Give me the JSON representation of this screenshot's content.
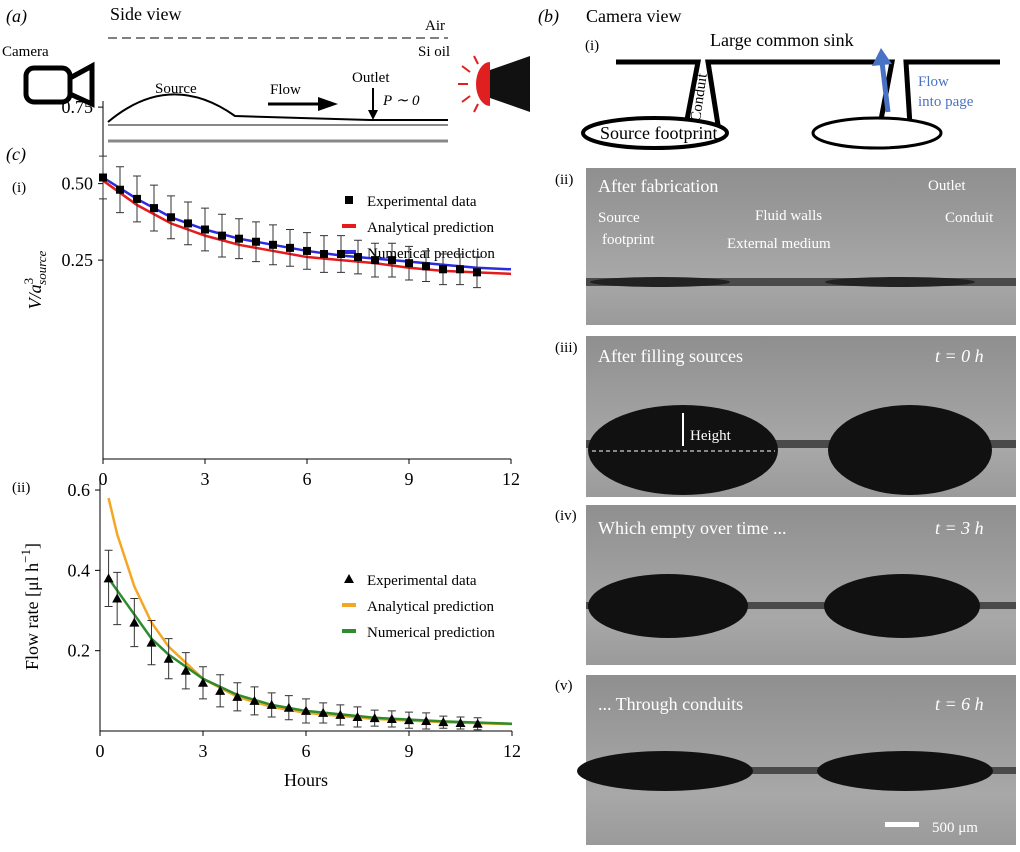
{
  "panel_a": {
    "label": "(a)",
    "title": "Side view",
    "air": "Air",
    "oil": "Si oil",
    "camera": "Camera",
    "source": "Source",
    "flow": "Flow",
    "outlet": "Outlet",
    "pressure": "P ∼ 0"
  },
  "panel_b": {
    "label": "(b)",
    "title": "Camera view",
    "schematic": {
      "label": "(i)",
      "sink": "Large common sink",
      "conduit": "Conduit",
      "footprint": "Source footprint",
      "flow": [
        "Flow",
        "into page"
      ]
    },
    "photos": [
      {
        "label": "(ii)",
        "caption": "After fabrication",
        "annotations": [
          "Source",
          "footprint",
          "Fluid walls",
          "Outlet",
          "Conduit",
          "External medium"
        ]
      },
      {
        "label": "(iii)",
        "caption": "After filling sources",
        "time": "t = 0 h",
        "annotations": [
          "Height"
        ]
      },
      {
        "label": "(iv)",
        "caption": "Which empty over time ...",
        "time": "t = 3 h"
      },
      {
        "label": "(v)",
        "caption": "... Through conduits",
        "time": "t = 6 h",
        "scale_bar": "500 μm"
      }
    ]
  },
  "panel_c": {
    "label": "(c)"
  },
  "chart_data": [
    {
      "type": "scatter",
      "panel_label": "(i)",
      "ylabel": {
        "text": "V/a",
        "sup": "3",
        "sub": "source"
      },
      "xlim": [
        0,
        12
      ],
      "xticks": [
        0,
        3,
        6,
        9,
        12
      ],
      "ylim": [
        -0.4,
        0.77
      ],
      "yticks": [
        0.25,
        {
          "value": 0.5,
          "label": "0.50"
        },
        0.75
      ],
      "series": [
        {
          "name": "Experimental data",
          "color": "#000000",
          "marker": "square",
          "x": [
            0,
            0.5,
            1,
            1.5,
            2,
            2.5,
            3,
            3.5,
            4,
            4.5,
            5,
            5.5,
            6,
            6.5,
            7,
            7.5,
            8,
            8.5,
            9,
            9.5,
            10,
            10.5,
            11
          ],
          "values": [
            0.52,
            0.48,
            0.45,
            0.42,
            0.39,
            0.37,
            0.35,
            0.33,
            0.32,
            0.31,
            0.3,
            0.29,
            0.28,
            0.27,
            0.27,
            0.26,
            0.25,
            0.25,
            0.24,
            0.23,
            0.22,
            0.22,
            0.21
          ],
          "errors": [
            0.07,
            0.075,
            0.075,
            0.075,
            0.07,
            0.07,
            0.07,
            0.07,
            0.065,
            0.065,
            0.065,
            0.06,
            0.06,
            0.06,
            0.06,
            0.055,
            0.055,
            0.055,
            0.055,
            0.05,
            0.05,
            0.05,
            0.05
          ]
        },
        {
          "name": "Analytical prediction",
          "color": "#e41a1c",
          "marker": "line",
          "x": [
            0,
            1,
            2,
            3,
            4,
            5,
            6,
            7,
            8,
            9,
            10,
            11,
            12
          ],
          "values": [
            0.51,
            0.43,
            0.37,
            0.33,
            0.3,
            0.28,
            0.26,
            0.25,
            0.24,
            0.225,
            0.215,
            0.21,
            0.205
          ]
        },
        {
          "name": "Numerical prediction",
          "color": "#2b2bdf",
          "marker": "line",
          "x": [
            0,
            1,
            2,
            3,
            4,
            5,
            6,
            7,
            8,
            9,
            10,
            11,
            12
          ],
          "values": [
            0.52,
            0.45,
            0.39,
            0.35,
            0.32,
            0.3,
            0.28,
            0.265,
            0.255,
            0.245,
            0.235,
            0.225,
            0.22
          ]
        }
      ]
    },
    {
      "type": "scatter",
      "panel_label": "(ii)",
      "xlabel": "Hours",
      "ylabel": {
        "text": "Flow rate [μl h",
        "sup": "−1",
        "suffix": "]"
      },
      "xlim": [
        0,
        12
      ],
      "xticks": [
        0,
        3,
        6,
        9,
        12
      ],
      "ylim": [
        0,
        0.62
      ],
      "yticks": [
        0.2,
        0.4,
        0.6
      ],
      "series": [
        {
          "name": "Experimental data",
          "color": "#000000",
          "marker": "triangle",
          "x": [
            0.25,
            0.5,
            1,
            1.5,
            2,
            2.5,
            3,
            3.5,
            4,
            4.5,
            5,
            5.5,
            6,
            6.5,
            7,
            7.5,
            8,
            8.5,
            9,
            9.5,
            10,
            10.5,
            11
          ],
          "values": [
            0.38,
            0.33,
            0.27,
            0.22,
            0.18,
            0.15,
            0.12,
            0.1,
            0.085,
            0.075,
            0.065,
            0.058,
            0.05,
            0.045,
            0.04,
            0.035,
            0.032,
            0.03,
            0.027,
            0.025,
            0.022,
            0.02,
            0.018
          ],
          "errors": [
            0.07,
            0.065,
            0.06,
            0.055,
            0.05,
            0.045,
            0.04,
            0.04,
            0.035,
            0.035,
            0.03,
            0.03,
            0.03,
            0.025,
            0.025,
            0.025,
            0.02,
            0.02,
            0.02,
            0.02,
            0.015,
            0.015,
            0.015
          ]
        },
        {
          "name": "Analytical prediction",
          "color": "#f5a623",
          "marker": "line",
          "x": [
            0.25,
            0.5,
            1,
            1.5,
            2,
            3,
            4,
            5,
            6,
            8,
            10,
            12
          ],
          "values": [
            0.58,
            0.49,
            0.36,
            0.27,
            0.21,
            0.13,
            0.085,
            0.06,
            0.045,
            0.03,
            0.022,
            0.017
          ]
        },
        {
          "name": "Numerical prediction",
          "color": "#2e8b2e",
          "marker": "line",
          "x": [
            0.25,
            0.5,
            1,
            1.5,
            2,
            3,
            4,
            5,
            6,
            8,
            10,
            12
          ],
          "values": [
            0.38,
            0.35,
            0.29,
            0.23,
            0.19,
            0.13,
            0.09,
            0.065,
            0.05,
            0.033,
            0.024,
            0.018
          ]
        }
      ]
    }
  ]
}
